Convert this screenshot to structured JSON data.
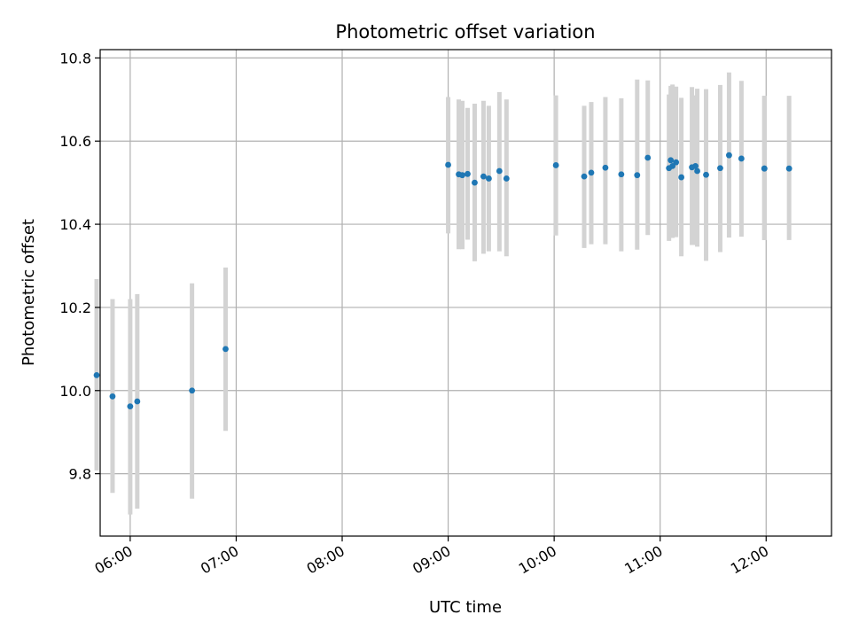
{
  "chart_data": {
    "type": "scatter",
    "title": "Photometric offset variation",
    "xlabel": "UTC time",
    "ylabel": "Photometric offset",
    "xlim": [
      "05:43",
      "12:37"
    ],
    "ylim": [
      9.65,
      10.82
    ],
    "x_ticks": [
      "06:00",
      "07:00",
      "08:00",
      "09:00",
      "10:00",
      "11:00",
      "12:00"
    ],
    "y_ticks": [
      9.8,
      10.0,
      10.2,
      10.4,
      10.6,
      10.8
    ],
    "grid": true,
    "legend": "none",
    "marker_color": "#1f77b4",
    "errorbar_color": "#d3d3d3",
    "series": [
      {
        "x": [
          "05:41",
          "05:50",
          "06:00",
          "06:04",
          "06:35",
          "06:54",
          "09:00",
          "09:06",
          "09:08",
          "09:11",
          "09:15",
          "09:20",
          "09:23",
          "09:29",
          "09:33",
          "10:01",
          "10:17",
          "10:21",
          "10:29",
          "10:38",
          "10:47",
          "10:53",
          "11:05",
          "11:06",
          "11:07",
          "11:09",
          "11:12",
          "11:18",
          "11:20",
          "11:21",
          "11:26",
          "11:34",
          "11:39",
          "11:46",
          "11:59",
          "11:59",
          "12:13"
        ],
        "y": [
          10.037,
          9.986,
          9.962,
          9.974,
          10.0,
          10.1,
          10.543,
          10.52,
          10.518,
          10.521,
          10.5,
          10.515,
          10.51,
          10.528,
          10.51,
          10.542,
          10.515,
          10.524,
          10.536,
          10.52,
          10.518,
          10.56,
          10.535,
          10.554,
          10.54,
          10.549,
          10.513,
          10.537,
          10.54,
          10.528,
          10.519,
          10.535,
          10.566,
          10.558,
          10.534,
          10.534,
          10.534
        ],
        "yerr_low": [
          9.808,
          9.754,
          9.702,
          9.716,
          9.74,
          9.903,
          10.378,
          10.34,
          10.34,
          10.363,
          10.311,
          10.329,
          10.335,
          10.335,
          10.323,
          10.373,
          10.343,
          10.352,
          10.352,
          10.335,
          10.339,
          10.374,
          10.36,
          10.368,
          10.367,
          10.369,
          10.323,
          10.35,
          10.35,
          10.346,
          10.312,
          10.333,
          10.368,
          10.37,
          10.362,
          10.362,
          10.362
        ],
        "yerr_high": [
          10.268,
          10.22,
          10.22,
          10.232,
          10.258,
          10.296,
          10.706,
          10.7,
          10.697,
          10.68,
          10.69,
          10.697,
          10.685,
          10.718,
          10.7,
          10.71,
          10.685,
          10.694,
          10.706,
          10.703,
          10.748,
          10.746,
          10.712,
          10.733,
          10.736,
          10.731,
          10.704,
          10.73,
          10.71,
          10.726,
          10.725,
          10.735,
          10.765,
          10.745,
          10.709,
          10.709,
          10.709
        ]
      }
    ]
  }
}
